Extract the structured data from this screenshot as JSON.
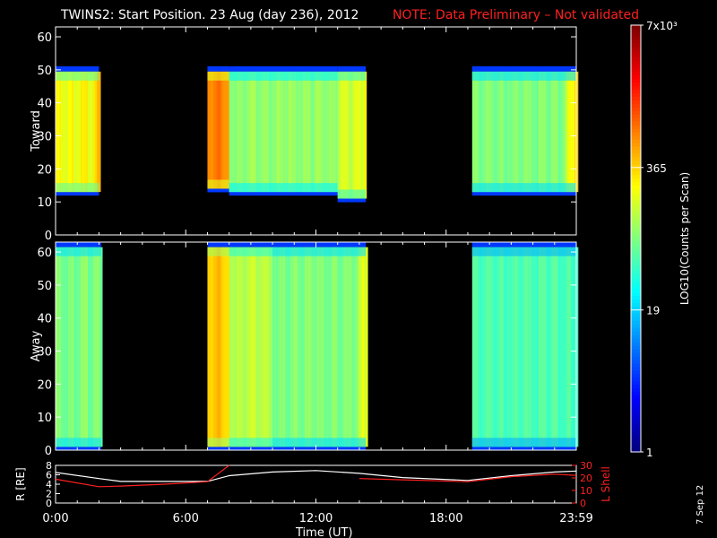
{
  "header": {
    "title": "TWINS2: Start Position. 23 Aug (day 236), 2012",
    "note": "NOTE: Data Preliminary – Not validated"
  },
  "footer": {
    "xlabel": "Time (UT)",
    "date_stamp": "7 Sep 12"
  },
  "colors": {
    "background": "#000000",
    "note": "#ff2020",
    "lshell": "#ff2020",
    "radius": "#ffffff"
  },
  "colorbar": {
    "label": "LOG10(Counts per Scan)",
    "ticks": [
      "7x10³",
      "365",
      "19",
      "1"
    ],
    "scale": "log",
    "range": [
      1,
      7000
    ]
  },
  "chart_data": [
    {
      "type": "heatmap",
      "panel": "Toward",
      "ylabel": "Toward",
      "ylim": [
        0,
        63
      ],
      "yticks": [
        0,
        10,
        20,
        30,
        40,
        50,
        60
      ],
      "x": [
        "0:00",
        "6:00",
        "12:00",
        "18:00",
        "23:59"
      ],
      "data_blocks": [
        {
          "start_h": 0.0,
          "end_h": 2.0,
          "y_range": [
            13,
            50
          ],
          "level": 0.62,
          "edge_level": 0.7
        },
        {
          "start_h": 7.0,
          "end_h": 8.0,
          "y_range": [
            14,
            50
          ],
          "level": 0.75,
          "edge_level": 0.75
        },
        {
          "start_h": 8.0,
          "end_h": 13.0,
          "y_range": [
            13,
            50
          ],
          "level": 0.52,
          "edge_level": 0.52
        },
        {
          "start_h": 13.0,
          "end_h": 14.3,
          "y_range": [
            11,
            50
          ],
          "level": 0.58,
          "edge_level": 0.7
        },
        {
          "start_h": 19.2,
          "end_h": 24.0,
          "y_range": [
            13,
            50
          ],
          "level": 0.5,
          "edge_level": 0.7
        }
      ]
    },
    {
      "type": "heatmap",
      "panel": "Away",
      "ylabel": "Away",
      "ylim": [
        0,
        63
      ],
      "yticks": [
        0,
        10,
        20,
        30,
        40,
        50,
        60
      ],
      "x": [
        "0:00",
        "6:00",
        "12:00",
        "18:00",
        "23:59"
      ],
      "data_blocks": [
        {
          "start_h": 0.0,
          "end_h": 2.1,
          "y_range": [
            1,
            62
          ],
          "level": 0.5,
          "edge_level": 0.5
        },
        {
          "start_h": 7.0,
          "end_h": 8.0,
          "y_range": [
            1,
            62
          ],
          "level": 0.68,
          "edge_level": 0.68
        },
        {
          "start_h": 8.0,
          "end_h": 10.0,
          "y_range": [
            1,
            62
          ],
          "level": 0.56,
          "edge_level": 0.56
        },
        {
          "start_h": 10.0,
          "end_h": 14.3,
          "y_range": [
            1,
            62
          ],
          "level": 0.5,
          "edge_level": 0.62
        },
        {
          "start_h": 19.2,
          "end_h": 24.0,
          "y_range": [
            1,
            62
          ],
          "level": 0.45,
          "edge_level": 0.45
        }
      ]
    },
    {
      "type": "line",
      "panel": "orbit",
      "x_hours": [
        0,
        2,
        3,
        5,
        7,
        8,
        10,
        12,
        14,
        16,
        19,
        21,
        23,
        24
      ],
      "series": [
        {
          "name": "R (RE)",
          "axis": "left",
          "ylim": [
            0,
            8
          ],
          "yticks": [
            0,
            2,
            4,
            6,
            8
          ],
          "values": [
            6.5,
            5.2,
            4.6,
            4.6,
            4.6,
            5.8,
            6.6,
            6.9,
            6.3,
            5.4,
            4.8,
            5.8,
            6.6,
            6.8
          ]
        },
        {
          "name": "L Shell",
          "axis": "right",
          "ylim": [
            0,
            30
          ],
          "yticks": [
            0,
            10,
            20,
            30
          ],
          "values": [
            19,
            13,
            13.5,
            15,
            17,
            30,
            null,
            null,
            19.5,
            18.5,
            17,
            21,
            23,
            22
          ]
        }
      ],
      "ylabel_left": "R [RE]",
      "ylabel_right": "L Shell"
    }
  ]
}
